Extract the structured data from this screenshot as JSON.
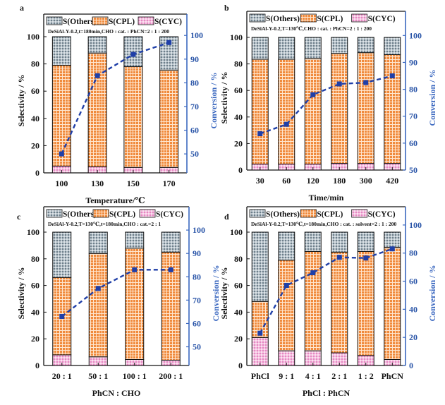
{
  "figure": {
    "colors": {
      "others_fill": "#b8c4cc",
      "others_dot": "#6f7f8a",
      "cpl_fill": "#f08a3c",
      "cpl_grid": "#ffe6cf",
      "cyc_fill": "#f5bfe0",
      "cyc_dot": "#e48ac2",
      "conversion_line": "#1f3fa8",
      "right_axis": "#3b68c0",
      "frame": "#111111"
    },
    "legend": [
      "S(Others)",
      "S(CPL)",
      "S(CYC)"
    ]
  },
  "chart_data": [
    {
      "panel": "a",
      "type": "bar",
      "stacked": true,
      "condition": "DeSiAl-Y-0.2,t=180min,CHO : cat. : PhCN=2 : 1 : 200",
      "categories": [
        "100",
        "130",
        "150",
        "170"
      ],
      "xlabel": "Temperature/℃",
      "ylabel": "Selectivity / %",
      "ylabel_right": "Conversion / %",
      "ylim": [
        0,
        113
      ],
      "yticks": [
        0,
        20,
        40,
        60,
        80,
        100
      ],
      "ylim_right": [
        42,
        109
      ],
      "yticks_right": [
        50,
        60,
        70,
        80,
        90,
        100
      ],
      "series": [
        {
          "name": "S(CYC)",
          "values": [
            5,
            4.5,
            4,
            4
          ]
        },
        {
          "name": "S(CPL)",
          "values": [
            74,
            83.5,
            74,
            71.5
          ]
        },
        {
          "name": "S(Others)",
          "values": [
            21,
            12,
            22,
            24.5
          ]
        }
      ],
      "conversion": {
        "name": "Conversion",
        "values": [
          50,
          83,
          92,
          97
        ]
      }
    },
    {
      "panel": "b",
      "type": "bar",
      "stacked": true,
      "condition": "DeSiAl-Y-0.2,T=130℃,CHO : cat. : PhCN=2 : 1 : 200",
      "categories": [
        "30",
        "60",
        "120",
        "180",
        "300",
        "420"
      ],
      "xlabel": "Time/min",
      "ylabel": "Selectivity / %",
      "ylabel_right": "Conversion / %",
      "ylim": [
        0,
        113
      ],
      "yticks": [
        0,
        20,
        40,
        60,
        80,
        100
      ],
      "ylim_right": [
        50,
        109
      ],
      "yticks_right": [
        50,
        60,
        70,
        80,
        90,
        100
      ],
      "series": [
        {
          "name": "S(CYC)",
          "values": [
            4.5,
            4.5,
            4.5,
            5,
            5,
            5
          ]
        },
        {
          "name": "S(CPL)",
          "values": [
            79,
            79,
            79.5,
            83,
            83.5,
            82
          ]
        },
        {
          "name": "S(Others)",
          "values": [
            16.5,
            16.5,
            16,
            12,
            11.5,
            13
          ]
        }
      ],
      "conversion": {
        "name": "Conversion",
        "values": [
          63.5,
          67,
          78,
          82,
          82.5,
          85
        ]
      }
    },
    {
      "panel": "c",
      "type": "bar",
      "stacked": true,
      "condition": "DeSiAl-Y-0.2,T=130℃,t=180min,CHO : cat.=2 : 1",
      "categories": [
        "20 : 1",
        "50 : 1",
        "100 : 1",
        "200 : 1"
      ],
      "xlabel": "PhCN : CHO",
      "ylabel": "Selectivity / %",
      "ylabel_right": "Conversion / %",
      "ylim": [
        0,
        113
      ],
      "yticks": [
        0,
        20,
        40,
        60,
        80,
        100
      ],
      "ylim_right": [
        42,
        110
      ],
      "yticks_right": [
        50,
        60,
        70,
        80,
        90,
        100
      ],
      "series": [
        {
          "name": "S(CYC)",
          "values": [
            8,
            6.5,
            4.5,
            4
          ]
        },
        {
          "name": "S(CPL)",
          "values": [
            58,
            77.5,
            83.5,
            81
          ]
        },
        {
          "name": "S(Others)",
          "values": [
            34,
            16,
            12,
            15
          ]
        }
      ],
      "conversion": {
        "name": "Conversion",
        "values": [
          63,
          75,
          83,
          83
        ]
      }
    },
    {
      "panel": "d",
      "type": "bar",
      "stacked": true,
      "condition": "DeSiAl-Y-0.2,T=130℃,t=180min,CHO : cat. : solvent=2 : 1 : 200",
      "categories": [
        "PhCl",
        "9 : 1",
        "4 : 1",
        "2 : 1",
        "1 : 2",
        "PhCN"
      ],
      "xlabel": "PhCl : PhCN",
      "ylabel": "Selectivity / %",
      "ylabel_right": "Conversion / %",
      "ylim": [
        0,
        113
      ],
      "yticks": [
        0,
        20,
        40,
        60,
        80,
        100
      ],
      "ylim_right": [
        0,
        113
      ],
      "yticks_right": [
        0,
        20,
        40,
        60,
        80,
        100
      ],
      "series": [
        {
          "name": "S(CYC)",
          "values": [
            21,
            11,
            11,
            9.5,
            7.5,
            4.5
          ]
        },
        {
          "name": "S(CPL)",
          "values": [
            27,
            68,
            74.5,
            75.5,
            78,
            84
          ]
        },
        {
          "name": "S(Others)",
          "values": [
            52,
            21,
            14.5,
            15,
            14.5,
            11.5
          ]
        }
      ],
      "conversion": {
        "name": "Conversion",
        "values": [
          23,
          57,
          66,
          77,
          76.5,
          83
        ]
      }
    }
  ]
}
